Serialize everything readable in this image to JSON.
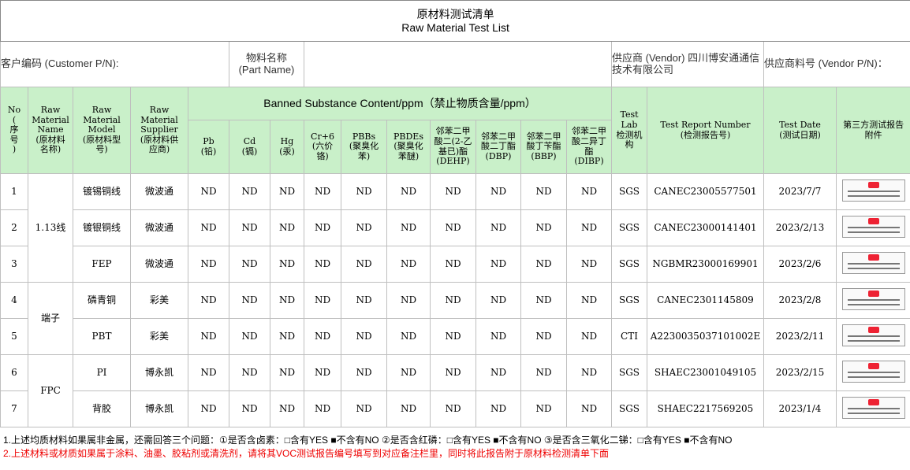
{
  "title": {
    "zh": "原材料测试清单",
    "en": "Raw Material Test List"
  },
  "info": {
    "customer_pn": "客户编码 (Customer P/N):",
    "part_name": [
      "物料名称",
      "(Part Name)"
    ],
    "vendor": "供应商 (Vendor) 四川博安通通信技术有限公司",
    "vendor_pn": "供应商料号 (Vendor P/N)："
  },
  "header": {
    "no": [
      "No",
      "(",
      "序",
      "号",
      ")"
    ],
    "name": [
      "Raw",
      "Material",
      "Name",
      "(原材料",
      "名称)"
    ],
    "model": [
      "Raw Material",
      "Model",
      "(原材料型",
      "号)"
    ],
    "supplier": [
      "Raw Material",
      "Supplier",
      "(原材料供",
      "应商)"
    ],
    "banned": "Banned Substance Content/ppm（禁止物质含量/ppm）",
    "substances": [
      [
        "Pb",
        "(铅)"
      ],
      [
        "Cd",
        "(镉)"
      ],
      [
        "Hg",
        "(汞)"
      ],
      [
        "Cr+6",
        "(六价",
        "铬)"
      ],
      [
        "PBBs",
        "(聚臭化",
        "苯)"
      ],
      [
        "PBDEs",
        "(聚臭化",
        "苯醚)"
      ],
      [
        "邻苯二甲",
        "酸二(2-乙",
        "基已)酯",
        "(DEHP)"
      ],
      [
        "邻苯二甲",
        "酸二丁酯",
        "(DBP)"
      ],
      [
        "邻苯二甲",
        "酸丁苄酯",
        "(BBP)"
      ],
      [
        "邻苯二甲",
        "酸二异丁",
        "酯",
        "(DIBP)"
      ]
    ],
    "lab": [
      "Test Lab",
      "检测机",
      "构"
    ],
    "report": [
      "Test Report Number",
      "(检测报告号)"
    ],
    "date": [
      "Test Date",
      "(测试日期)"
    ],
    "attach": [
      "第三方测试报告",
      "附件"
    ]
  },
  "groups": [
    {
      "name": "1.13线",
      "rows": [
        {
          "no": "1",
          "model": "镀锡铜线",
          "supplier": "微波通",
          "results": [
            "ND",
            "ND",
            "ND",
            "ND",
            "ND",
            "ND",
            "ND",
            "ND",
            "ND",
            "ND"
          ],
          "lab": "SGS",
          "report": "CANEC23005577501",
          "date": "2023/7/7"
        },
        {
          "no": "2",
          "model": "镀银铜线",
          "supplier": "微波通",
          "results": [
            "ND",
            "ND",
            "ND",
            "ND",
            "ND",
            "ND",
            "ND",
            "ND",
            "ND",
            "ND"
          ],
          "lab": "SGS",
          "report": "CANEC23000141401",
          "date": "2023/2/13"
        },
        {
          "no": "3",
          "model": "FEP",
          "supplier": "微波通",
          "results": [
            "ND",
            "ND",
            "ND",
            "ND",
            "ND",
            "ND",
            "ND",
            "ND",
            "ND",
            "ND"
          ],
          "lab": "SGS",
          "report": "NGBMR23000169901",
          "date": "2023/2/6"
        }
      ]
    },
    {
      "name": "端子",
      "rows": [
        {
          "no": "4",
          "model": "磷青铜",
          "supplier": "彩美",
          "results": [
            "ND",
            "ND",
            "ND",
            "ND",
            "ND",
            "ND",
            "ND",
            "ND",
            "ND",
            "ND"
          ],
          "lab": "SGS",
          "report": "CANEC2301145809",
          "date": "2023/2/8"
        },
        {
          "no": "5",
          "model": "PBT",
          "supplier": "彩美",
          "results": [
            "ND",
            "ND",
            "ND",
            "ND",
            "ND",
            "ND",
            "ND",
            "ND",
            "ND",
            "ND"
          ],
          "lab": "CTI",
          "report": "A2230035037101002E",
          "date": "2023/2/11"
        }
      ]
    },
    {
      "name": "FPC",
      "rows": [
        {
          "no": "6",
          "model": "PI",
          "supplier": "博永凯",
          "results": [
            "ND",
            "ND",
            "ND",
            "ND",
            "ND",
            "ND",
            "ND",
            "ND",
            "ND",
            "ND"
          ],
          "lab": "SGS",
          "report": "SHAEC23001049105",
          "date": "2023/2/15"
        },
        {
          "no": "7",
          "model": "背胶",
          "supplier": "博永凯",
          "results": [
            "ND",
            "ND",
            "ND",
            "ND",
            "ND",
            "ND",
            "ND",
            "ND",
            "ND",
            "ND"
          ],
          "lab": "SGS",
          "report": "SHAEC2217569205",
          "date": "2023/1/4"
        }
      ]
    }
  ],
  "notes": [
    "1.上述均质材料如果属非金属，还需回答三个问题：①是否含卤素：□含有YES ■不含有NO ②是否含红磷：□含有YES ■不含有NO ③是否含三氧化二锑：□含有YES ■不含有NO",
    "2.上述材料或材质如果属于涂料、油墨、胶粘剂或清洗剂，请将其VOC测试报告编号填写到对应备注栏里，同时将此报告附于原材料检测清单下面"
  ]
}
